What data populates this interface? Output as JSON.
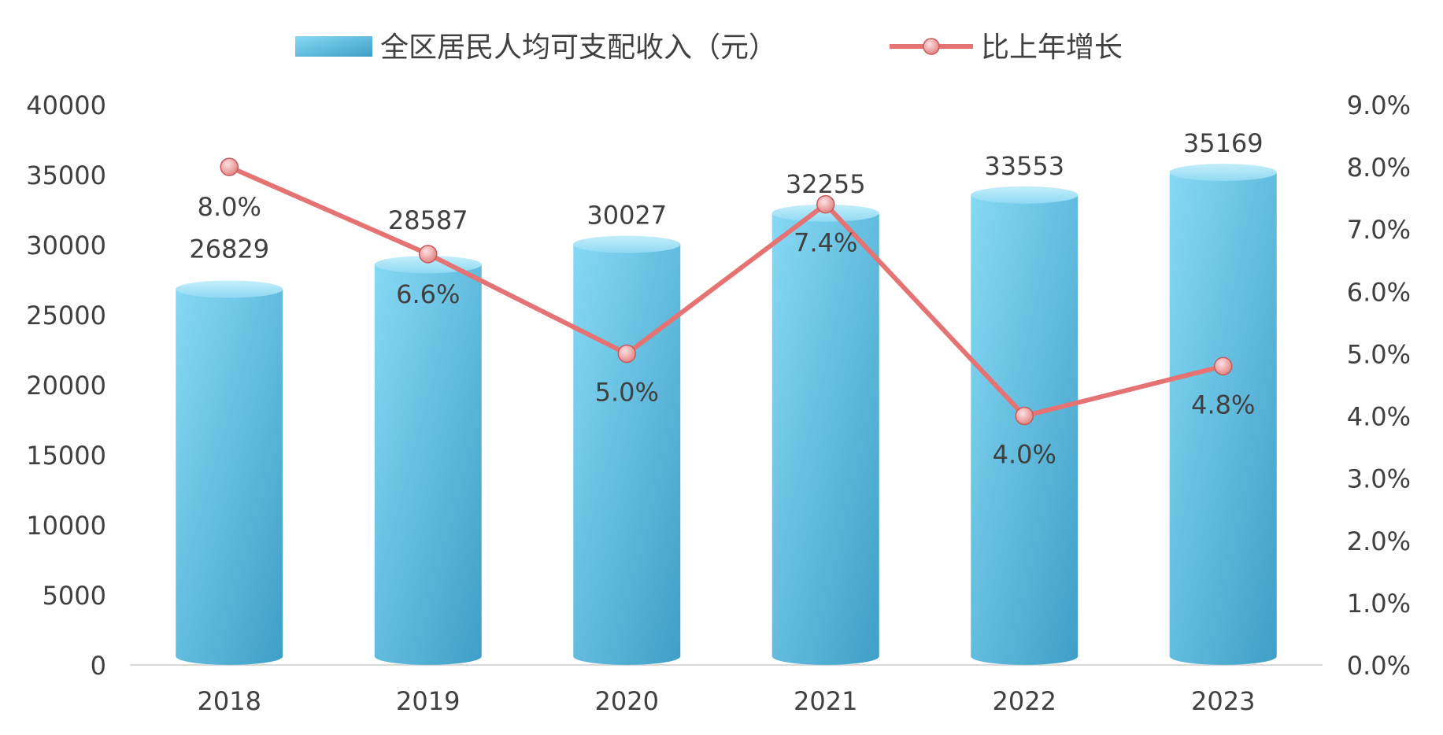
{
  "chart_data": {
    "type": "bar",
    "categories": [
      "2018",
      "2019",
      "2020",
      "2021",
      "2022",
      "2023"
    ],
    "series": [
      {
        "name": "全区居民人均可支配收入（元）",
        "type": "bar",
        "axis": "left",
        "values": [
          26829,
          28587,
          30027,
          32255,
          33553,
          35169
        ],
        "labels": [
          "26829",
          "28587",
          "30027",
          "32255",
          "33553",
          "35169"
        ],
        "color": "#5bbfe0"
      },
      {
        "name": "比上年增长",
        "type": "line",
        "axis": "right",
        "values": [
          8.0,
          6.6,
          5.0,
          7.4,
          4.0,
          4.8
        ],
        "labels": [
          "8.0%",
          "6.6%",
          "5.0%",
          "7.4%",
          "4.0%",
          "4.8%"
        ],
        "color": "#e57373"
      }
    ],
    "y_left": {
      "ylim": [
        0,
        40000
      ],
      "ticks": [
        0,
        5000,
        10000,
        15000,
        20000,
        25000,
        30000,
        35000,
        40000
      ],
      "tick_labels": [
        "0",
        "5000",
        "10000",
        "15000",
        "20000",
        "25000",
        "30000",
        "35000",
        "40000"
      ]
    },
    "y_right": {
      "ylim": [
        0,
        9
      ],
      "ticks": [
        0,
        1,
        2,
        3,
        4,
        5,
        6,
        7,
        8,
        9
      ],
      "tick_labels": [
        "0.0%",
        "1.0%",
        "2.0%",
        "3.0%",
        "4.0%",
        "5.0%",
        "6.0%",
        "7.0%",
        "8.0%",
        "9.0%"
      ]
    },
    "legend_position": "top-center",
    "grid": false
  }
}
